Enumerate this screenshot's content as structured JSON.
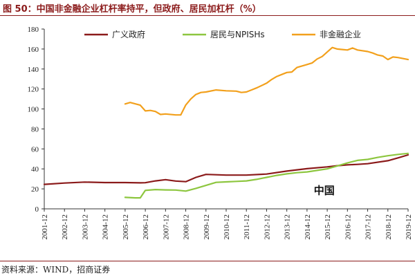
{
  "figure": {
    "title": "图 50：中国非金融企业杠杆率持平，但政府、居民加杠杆（%）",
    "source": "资料来源：WIND，招商证券"
  },
  "chart_data": {
    "type": "line",
    "annotation": "中国",
    "ylim": [
      0,
      180
    ],
    "y_ticks": [
      0,
      20,
      40,
      60,
      80,
      100,
      120,
      140,
      160,
      180
    ],
    "x_ticks": [
      "2001-12",
      "2002-12",
      "2003-12",
      "2004-12",
      "2005-12",
      "2006-12",
      "2007-12",
      "2008-12",
      "2009-12",
      "2010-12",
      "2011-12",
      "2012-12",
      "2013-12",
      "2014-12",
      "2015-12",
      "2016-12",
      "2017-12",
      "2018-12",
      "2019-12"
    ],
    "x_range": [
      2001.75,
      2019.75
    ],
    "legend_position": "top",
    "series": [
      {
        "name": "广义政府",
        "color": "#8b1a1a",
        "points": [
          [
            2001.75,
            24.5
          ],
          [
            2002.75,
            25.8
          ],
          [
            2003.75,
            26.8
          ],
          [
            2004.75,
            26.3
          ],
          [
            2005.75,
            26.3
          ],
          [
            2006.5,
            26.0
          ],
          [
            2006.75,
            26.2
          ],
          [
            2007.25,
            28.0
          ],
          [
            2007.75,
            29.2
          ],
          [
            2008.25,
            27.8
          ],
          [
            2008.75,
            27.2
          ],
          [
            2009.25,
            31.5
          ],
          [
            2009.75,
            34.5
          ],
          [
            2010.75,
            33.8
          ],
          [
            2011.75,
            33.8
          ],
          [
            2012.75,
            34.8
          ],
          [
            2013.75,
            37.8
          ],
          [
            2014.75,
            40.2
          ],
          [
            2015.75,
            42.0
          ],
          [
            2016.25,
            43.2
          ],
          [
            2016.75,
            44.0
          ],
          [
            2017.25,
            44.5
          ],
          [
            2017.75,
            45.2
          ],
          [
            2018.75,
            48.2
          ],
          [
            2019.25,
            51.0
          ],
          [
            2019.75,
            54.0
          ]
        ]
      },
      {
        "name": "居民与NPISHs",
        "color": "#8dc63f",
        "points": [
          [
            2005.75,
            11.5
          ],
          [
            2006.25,
            11.0
          ],
          [
            2006.5,
            11.0
          ],
          [
            2006.75,
            18.5
          ],
          [
            2007.25,
            19.3
          ],
          [
            2007.75,
            19.0
          ],
          [
            2008.25,
            18.8
          ],
          [
            2008.75,
            17.8
          ],
          [
            2009.25,
            20.5
          ],
          [
            2009.75,
            23.5
          ],
          [
            2010.25,
            26.5
          ],
          [
            2010.75,
            27.0
          ],
          [
            2011.25,
            27.5
          ],
          [
            2011.75,
            28.0
          ],
          [
            2012.25,
            29.5
          ],
          [
            2012.75,
            31.5
          ],
          [
            2013.25,
            33.5
          ],
          [
            2013.75,
            35.0
          ],
          [
            2014.25,
            36.2
          ],
          [
            2014.75,
            37.0
          ],
          [
            2015.25,
            38.5
          ],
          [
            2015.75,
            40.0
          ],
          [
            2016.25,
            43.0
          ],
          [
            2016.75,
            46.0
          ],
          [
            2017.25,
            48.5
          ],
          [
            2017.75,
            49.5
          ],
          [
            2018.25,
            51.5
          ],
          [
            2018.75,
            53.2
          ],
          [
            2019.25,
            54.5
          ],
          [
            2019.75,
            55.5
          ]
        ]
      },
      {
        "name": "非金融企业",
        "color": "#f2a01c",
        "points": [
          [
            2005.75,
            105.0
          ],
          [
            2006.0,
            106.5
          ],
          [
            2006.5,
            103.8
          ],
          [
            2006.75,
            98.0
          ],
          [
            2007.0,
            98.5
          ],
          [
            2007.25,
            97.5
          ],
          [
            2007.5,
            94.5
          ],
          [
            2007.75,
            95.0
          ],
          [
            2008.25,
            94.0
          ],
          [
            2008.5,
            94.0
          ],
          [
            2008.75,
            104.0
          ],
          [
            2009.0,
            110.0
          ],
          [
            2009.25,
            114.5
          ],
          [
            2009.5,
            116.5
          ],
          [
            2009.75,
            117.0
          ],
          [
            2010.25,
            119.0
          ],
          [
            2010.75,
            118.2
          ],
          [
            2011.25,
            117.8
          ],
          [
            2011.5,
            116.5
          ],
          [
            2011.75,
            117.0
          ],
          [
            2012.0,
            119.0
          ],
          [
            2012.25,
            121.0
          ],
          [
            2012.75,
            125.8
          ],
          [
            2013.0,
            129.5
          ],
          [
            2013.25,
            132.5
          ],
          [
            2013.5,
            134.5
          ],
          [
            2013.75,
            136.5
          ],
          [
            2014.0,
            137.0
          ],
          [
            2014.25,
            141.5
          ],
          [
            2014.75,
            144.5
          ],
          [
            2015.0,
            146.0
          ],
          [
            2015.25,
            150.0
          ],
          [
            2015.5,
            152.5
          ],
          [
            2015.75,
            157.0
          ],
          [
            2016.0,
            161.5
          ],
          [
            2016.25,
            160.0
          ],
          [
            2016.5,
            159.5
          ],
          [
            2016.75,
            159.0
          ],
          [
            2017.0,
            161.0
          ],
          [
            2017.25,
            159.0
          ],
          [
            2017.75,
            157.5
          ],
          [
            2018.0,
            156.0
          ],
          [
            2018.25,
            154.0
          ],
          [
            2018.5,
            153.0
          ],
          [
            2018.75,
            149.5
          ],
          [
            2019.0,
            152.0
          ],
          [
            2019.25,
            151.5
          ],
          [
            2019.75,
            149.5
          ]
        ]
      }
    ]
  }
}
